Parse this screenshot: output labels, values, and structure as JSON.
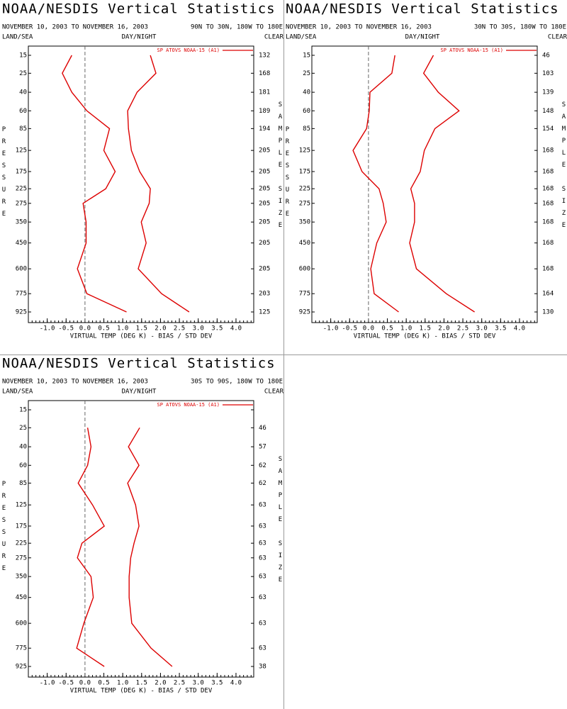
{
  "chart_data": [
    {
      "type": "line",
      "title": "NOAA/NESDIS Vertical Statistics",
      "subtitle": "NOVEMBER 10, 2003 TO NOVEMBER 16, 2003",
      "region": "90N TO 30N, 180W TO 180E",
      "land_sea": "LAND/SEA",
      "day_night": "DAY/NIGHT",
      "clear": "CLEAR",
      "y_label": "PRESSURE",
      "sample_label": "SAMPLE SIZE",
      "x_label": "VIRTUAL TEMP (DEG K) - BIAS / STD DEV",
      "legend_label": "SP ATOVS NOAA-15 (A1)",
      "y": [
        15,
        25,
        40,
        60,
        85,
        125,
        175,
        225,
        275,
        350,
        450,
        600,
        775,
        925
      ],
      "sample_size": [
        132,
        168,
        181,
        189,
        194,
        205,
        205,
        205,
        205,
        205,
        205,
        205,
        203,
        125
      ],
      "xlim": [
        -1.5,
        4.47
      ],
      "xticks": [
        {
          "value": -1,
          "label": "-1.0"
        },
        -0.5,
        {
          "value": 0,
          "label": "0.0"
        },
        0.5,
        {
          "value": 1,
          "label": "1.0"
        },
        1.5,
        {
          "value": 2,
          "label": "2.0"
        },
        2.5,
        {
          "value": 3,
          "label": "3.0"
        },
        3.5,
        {
          "value": 4,
          "label": "4.0"
        }
      ],
      "series": [
        {
          "color": "#dd0000",
          "values": [
            -0.35,
            -0.6,
            -0.35,
            0.05,
            0.65,
            0.5,
            0.8,
            0.55,
            -0.05,
            0.03,
            0.03,
            -0.2,
            0.05,
            1.1
          ]
        },
        {
          "color": "#dd0000",
          "values": [
            1.73,
            1.88,
            1.38,
            1.13,
            1.15,
            1.23,
            1.45,
            1.73,
            1.7,
            1.49,
            1.62,
            1.41,
            2.03,
            2.76
          ]
        }
      ]
    },
    {
      "type": "line",
      "title": "NOAA/NESDIS Vertical Statistics",
      "subtitle": "NOVEMBER 10, 2003 TO NOVEMBER 16, 2003",
      "region": "30N TO 30S, 180W TO 180E",
      "land_sea": "LAND/SEA",
      "day_night": "DAY/NIGHT",
      "clear": "CLEAR",
      "y_label": "PRESSURE",
      "sample_label": "SAMPLE SIZE",
      "x_label": "VIRTUAL TEMP (DEG K) - BIAS / STD DEV",
      "legend_label": "SP ATOVS NOAA-15 (A1)",
      "y": [
        15,
        25,
        40,
        60,
        85,
        125,
        175,
        225,
        275,
        350,
        450,
        600,
        775,
        925
      ],
      "sample_size": [
        46,
        103,
        139,
        148,
        154,
        168,
        168,
        168,
        168,
        168,
        168,
        168,
        164,
        130
      ],
      "xlim": [
        -1.5,
        4.47
      ],
      "xticks": [
        {
          "value": -1,
          "label": "-1.0"
        },
        -0.5,
        {
          "value": 0,
          "label": "0.0"
        },
        0.5,
        {
          "value": 1,
          "label": "1.0"
        },
        1.5,
        {
          "value": 2,
          "label": "2.0"
        },
        2.5,
        {
          "value": 3,
          "label": "3.0"
        },
        3.5,
        {
          "value": 4,
          "label": "4.0"
        }
      ],
      "series": [
        {
          "color": "#dd0000",
          "values": [
            0.7,
            0.62,
            0.04,
            0.02,
            -0.05,
            -0.41,
            -0.17,
            0.28,
            0.39,
            0.47,
            0.22,
            0.06,
            0.15,
            0.8
          ]
        },
        {
          "color": "#dd0000",
          "values": [
            1.72,
            1.46,
            1.85,
            2.4,
            1.76,
            1.48,
            1.37,
            1.12,
            1.22,
            1.22,
            1.09,
            1.27,
            2.06,
            2.81
          ]
        }
      ]
    },
    {
      "type": "line",
      "title": "NOAA/NESDIS Vertical Statistics",
      "subtitle": "NOVEMBER 10, 2003 TO NOVEMBER 16, 2003",
      "region": "30S TO 90S, 180W TO 180E",
      "land_sea": "LAND/SEA",
      "day_night": "DAY/NIGHT",
      "clear": "CLEAR",
      "y_label": "PRESSURE",
      "sample_label": "SAMPLE SIZE",
      "x_label": "VIRTUAL TEMP (DEG K) - BIAS / STD DEV",
      "legend_label": "SP ATOVS NOAA-15 (A1)",
      "y": [
        15,
        25,
        40,
        60,
        85,
        125,
        175,
        225,
        275,
        350,
        450,
        600,
        775,
        925
      ],
      "sample_size": [
        null,
        46,
        57,
        62,
        62,
        63,
        63,
        63,
        63,
        63,
        63,
        63,
        63,
        38
      ],
      "xlim": [
        -1.5,
        4.47
      ],
      "xticks": [
        {
          "value": -1,
          "label": "-1.0"
        },
        -0.5,
        {
          "value": 0,
          "label": "0.0"
        },
        0.5,
        {
          "value": 1,
          "label": "1.0"
        },
        1.5,
        {
          "value": 2,
          "label": "2.0"
        },
        2.5,
        {
          "value": 3,
          "label": "3.0"
        },
        3.5,
        {
          "value": 4,
          "label": "4.0"
        }
      ],
      "series": [
        {
          "color": "#dd0000",
          "values": [
            null,
            0.07,
            0.16,
            0.07,
            -0.18,
            0.2,
            0.51,
            -0.08,
            -0.2,
            0.16,
            0.22,
            -0.03,
            -0.22,
            0.51
          ]
        },
        {
          "color": "#dd0000",
          "values": [
            null,
            1.45,
            1.15,
            1.43,
            1.13,
            1.34,
            1.43,
            1.3,
            1.21,
            1.17,
            1.17,
            1.24,
            1.75,
            2.31
          ]
        }
      ]
    }
  ]
}
